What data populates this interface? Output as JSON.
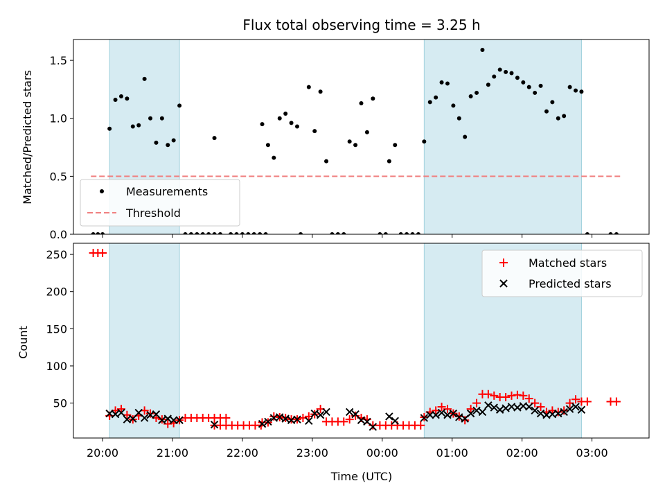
{
  "chart_data": [
    {
      "type": "scatter",
      "title": "Flux total observing time = 3.25 h",
      "xlabel": "",
      "ylabel": "Matched/Predicted stars",
      "ylim": [
        0,
        1.68
      ],
      "yticks": [
        "0.0",
        "0.5",
        "1.0",
        "1.5"
      ],
      "ytick_values": [
        0,
        0.5,
        1.0,
        1.5
      ],
      "legend_position": "lower-left",
      "grid": false,
      "highlight_spans": [
        [
          "20:06",
          "21:06"
        ],
        [
          "00:36",
          "02:51"
        ]
      ],
      "threshold": {
        "name": "Threshold",
        "value": 0.5,
        "x_range": [
          "19:50",
          "03:25"
        ],
        "color": "#f08080"
      },
      "series": [
        {
          "name": "Measurements",
          "color": "#000000",
          "marker": "dot",
          "points": [
            [
              "19:52",
              0
            ],
            [
              "19:56",
              0
            ],
            [
              "20:00",
              0
            ],
            [
              "20:06",
              0.91
            ],
            [
              "20:11",
              1.16
            ],
            [
              "20:16",
              1.19
            ],
            [
              "20:21",
              1.17
            ],
            [
              "20:26",
              0.93
            ],
            [
              "20:31",
              0.94
            ],
            [
              "20:36",
              1.34
            ],
            [
              "20:41",
              1.0
            ],
            [
              "20:46",
              0.79
            ],
            [
              "20:51",
              1.0
            ],
            [
              "20:56",
              0.77
            ],
            [
              "21:01",
              0.81
            ],
            [
              "21:06",
              1.11
            ],
            [
              "21:11",
              0
            ],
            [
              "21:16",
              0
            ],
            [
              "21:21",
              0
            ],
            [
              "21:26",
              0
            ],
            [
              "21:31",
              0
            ],
            [
              "21:36",
              0
            ],
            [
              "21:41",
              0
            ],
            [
              "21:36",
              0.83
            ],
            [
              "21:50",
              0
            ],
            [
              "21:55",
              0
            ],
            [
              "22:00",
              0
            ],
            [
              "22:05",
              0
            ],
            [
              "22:10",
              0
            ],
            [
              "22:15",
              0
            ],
            [
              "22:20",
              0
            ],
            [
              "22:17",
              0.95
            ],
            [
              "22:22",
              0.77
            ],
            [
              "22:27",
              0.66
            ],
            [
              "22:32",
              1.0
            ],
            [
              "22:37",
              1.04
            ],
            [
              "22:42",
              0.96
            ],
            [
              "22:47",
              0.93
            ],
            [
              "22:50",
              0
            ],
            [
              "22:57",
              1.27
            ],
            [
              "23:02",
              0.89
            ],
            [
              "23:07",
              1.23
            ],
            [
              "23:12",
              0.63
            ],
            [
              "23:17",
              0
            ],
            [
              "23:22",
              0
            ],
            [
              "23:27",
              0
            ],
            [
              "23:32",
              0.8
            ],
            [
              "23:37",
              0.77
            ],
            [
              "23:42",
              1.13
            ],
            [
              "23:47",
              0.88
            ],
            [
              "23:52",
              1.17
            ],
            [
              "23:58",
              0
            ],
            [
              "00:03",
              0
            ],
            [
              "00:06",
              0.63
            ],
            [
              "00:11",
              0.77
            ],
            [
              "00:16",
              0
            ],
            [
              "00:21",
              0
            ],
            [
              "00:26",
              0
            ],
            [
              "00:31",
              0
            ],
            [
              "00:36",
              0.8
            ],
            [
              "00:41",
              1.14
            ],
            [
              "00:46",
              1.18
            ],
            [
              "00:51",
              1.31
            ],
            [
              "00:56",
              1.3
            ],
            [
              "01:01",
              1.11
            ],
            [
              "01:06",
              1.0
            ],
            [
              "01:11",
              0.84
            ],
            [
              "01:16",
              1.19
            ],
            [
              "01:21",
              1.22
            ],
            [
              "01:26",
              1.59
            ],
            [
              "01:31",
              1.29
            ],
            [
              "01:36",
              1.36
            ],
            [
              "01:41",
              1.42
            ],
            [
              "01:46",
              1.4
            ],
            [
              "01:51",
              1.39
            ],
            [
              "01:56",
              1.35
            ],
            [
              "02:01",
              1.31
            ],
            [
              "02:06",
              1.27
            ],
            [
              "02:11",
              1.22
            ],
            [
              "02:16",
              1.28
            ],
            [
              "02:21",
              1.06
            ],
            [
              "02:26",
              1.14
            ],
            [
              "02:31",
              1.0
            ],
            [
              "02:36",
              1.02
            ],
            [
              "02:41",
              1.27
            ],
            [
              "02:46",
              1.24
            ],
            [
              "02:51",
              1.23
            ],
            [
              "02:56",
              0
            ],
            [
              "03:16",
              0
            ],
            [
              "03:21",
              0
            ]
          ]
        }
      ]
    },
    {
      "type": "scatter",
      "title": "",
      "xlabel": "Time (UTC)",
      "ylabel": "Count",
      "ylim": [
        3,
        265
      ],
      "yticks": [
        "50",
        "100",
        "150",
        "200",
        "250"
      ],
      "ytick_values": [
        50,
        100,
        150,
        200,
        250
      ],
      "xlim": [
        "19:35",
        "03:49"
      ],
      "xticks": [
        "20:00",
        "21:00",
        "22:00",
        "23:00",
        "00:00",
        "01:00",
        "02:00",
        "03:00"
      ],
      "legend_position": "upper-right",
      "grid": false,
      "highlight_spans": [
        [
          "20:06",
          "21:06"
        ],
        [
          "00:36",
          "02:51"
        ]
      ],
      "series": [
        {
          "name": "Matched stars",
          "color": "#ff0000",
          "marker": "plus",
          "points": [
            [
              "19:52",
              252
            ],
            [
              "19:56",
              252
            ],
            [
              "20:00",
              252
            ],
            [
              "20:06",
              33
            ],
            [
              "20:11",
              40
            ],
            [
              "20:16",
              42
            ],
            [
              "20:21",
              34
            ],
            [
              "20:26",
              28
            ],
            [
              "20:31",
              33
            ],
            [
              "20:36",
              40
            ],
            [
              "20:41",
              36
            ],
            [
              "20:46",
              30
            ],
            [
              "20:51",
              28
            ],
            [
              "20:56",
              22
            ],
            [
              "21:01",
              23
            ],
            [
              "21:06",
              27
            ],
            [
              "21:11",
              30
            ],
            [
              "21:16",
              30
            ],
            [
              "21:21",
              30
            ],
            [
              "21:26",
              30
            ],
            [
              "21:31",
              30
            ],
            [
              "21:36",
              30
            ],
            [
              "21:41",
              30
            ],
            [
              "21:46",
              30
            ],
            [
              "21:36",
              20
            ],
            [
              "21:41",
              20
            ],
            [
              "21:46",
              20
            ],
            [
              "21:51",
              20
            ],
            [
              "21:56",
              20
            ],
            [
              "22:01",
              20
            ],
            [
              "22:06",
              20
            ],
            [
              "22:11",
              20
            ],
            [
              "22:16",
              20
            ],
            [
              "22:17",
              24
            ],
            [
              "22:22",
              24
            ],
            [
              "22:27",
              32
            ],
            [
              "22:32",
              31
            ],
            [
              "22:37",
              30
            ],
            [
              "22:42",
              28
            ],
            [
              "22:47",
              28
            ],
            [
              "22:52",
              30
            ],
            [
              "22:57",
              32
            ],
            [
              "23:02",
              35
            ],
            [
              "23:07",
              42
            ],
            [
              "23:12",
              25
            ],
            [
              "23:17",
              25
            ],
            [
              "23:22",
              25
            ],
            [
              "23:27",
              25
            ],
            [
              "23:32",
              28
            ],
            [
              "23:37",
              33
            ],
            [
              "23:42",
              30
            ],
            [
              "23:47",
              28
            ],
            [
              "23:52",
              20
            ],
            [
              "23:58",
              20
            ],
            [
              "00:03",
              20
            ],
            [
              "00:08",
              20
            ],
            [
              "00:13",
              20
            ],
            [
              "00:18",
              20
            ],
            [
              "00:23",
              20
            ],
            [
              "00:28",
              20
            ],
            [
              "00:33",
              20
            ],
            [
              "00:36",
              31
            ],
            [
              "00:41",
              38
            ],
            [
              "00:46",
              40
            ],
            [
              "00:51",
              45
            ],
            [
              "00:56",
              42
            ],
            [
              "01:01",
              36
            ],
            [
              "01:06",
              32
            ],
            [
              "01:11",
              27
            ],
            [
              "01:16",
              42
            ],
            [
              "01:21",
              50
            ],
            [
              "01:26",
              62
            ],
            [
              "01:31",
              62
            ],
            [
              "01:36",
              60
            ],
            [
              "01:41",
              58
            ],
            [
              "01:46",
              58
            ],
            [
              "01:51",
              60
            ],
            [
              "01:56",
              61
            ],
            [
              "02:01",
              60
            ],
            [
              "02:06",
              56
            ],
            [
              "02:11",
              50
            ],
            [
              "02:16",
              45
            ],
            [
              "02:21",
              38
            ],
            [
              "02:26",
              40
            ],
            [
              "02:31",
              38
            ],
            [
              "02:36",
              40
            ],
            [
              "02:41",
              50
            ],
            [
              "02:46",
              55
            ],
            [
              "02:51",
              52
            ],
            [
              "02:56",
              52
            ],
            [
              "03:16",
              52
            ],
            [
              "03:21",
              52
            ]
          ]
        },
        {
          "name": "Predicted stars",
          "color": "#000000",
          "marker": "x",
          "points": [
            [
              "20:06",
              36
            ],
            [
              "20:11",
              35
            ],
            [
              "20:16",
              37
            ],
            [
              "20:21",
              28
            ],
            [
              "20:26",
              29
            ],
            [
              "20:31",
              37
            ],
            [
              "20:36",
              30
            ],
            [
              "20:41",
              34
            ],
            [
              "20:46",
              35
            ],
            [
              "20:51",
              27
            ],
            [
              "20:56",
              29
            ],
            [
              "21:01",
              27
            ],
            [
              "21:06",
              27
            ],
            [
              "21:36",
              21
            ],
            [
              "22:17",
              22
            ],
            [
              "22:22",
              25
            ],
            [
              "22:27",
              30
            ],
            [
              "22:32",
              31
            ],
            [
              "22:37",
              29
            ],
            [
              "22:42",
              27
            ],
            [
              "22:47",
              28
            ],
            [
              "22:57",
              26
            ],
            [
              "23:02",
              36
            ],
            [
              "23:07",
              34
            ],
            [
              "23:12",
              38
            ],
            [
              "23:32",
              38
            ],
            [
              "23:37",
              35
            ],
            [
              "23:42",
              27
            ],
            [
              "23:47",
              25
            ],
            [
              "23:52",
              18
            ],
            [
              "00:06",
              32
            ],
            [
              "00:11",
              26
            ],
            [
              "00:36",
              30
            ],
            [
              "00:41",
              34
            ],
            [
              "00:46",
              34
            ],
            [
              "00:51",
              37
            ],
            [
              "00:56",
              34
            ],
            [
              "01:01",
              36
            ],
            [
              "01:06",
              31
            ],
            [
              "01:11",
              29
            ],
            [
              "01:16",
              36
            ],
            [
              "01:21",
              40
            ],
            [
              "01:26",
              38
            ],
            [
              "01:31",
              47
            ],
            [
              "01:36",
              44
            ],
            [
              "01:41",
              41
            ],
            [
              "01:46",
              43
            ],
            [
              "01:51",
              45
            ],
            [
              "01:56",
              44
            ],
            [
              "02:01",
              46
            ],
            [
              "02:06",
              45
            ],
            [
              "02:11",
              40
            ],
            [
              "02:16",
              36
            ],
            [
              "02:21",
              34
            ],
            [
              "02:26",
              35
            ],
            [
              "02:31",
              36
            ],
            [
              "02:36",
              38
            ],
            [
              "02:41",
              42
            ],
            [
              "02:46",
              45
            ],
            [
              "02:51",
              41
            ]
          ]
        }
      ]
    }
  ]
}
